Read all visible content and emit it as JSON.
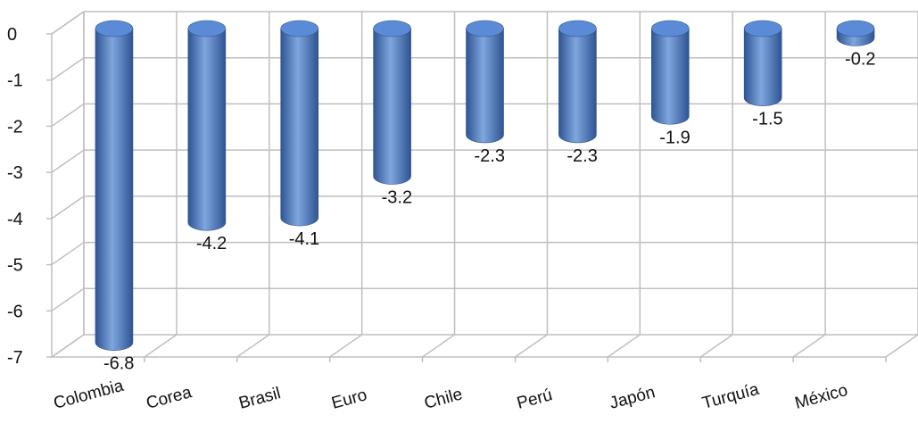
{
  "chart_data": {
    "type": "bar",
    "style": "3d-cylinder",
    "categories": [
      "Colombia",
      "Corea",
      "Brasil",
      "Euro",
      "Chile",
      "Perú",
      "Japón",
      "Turquía",
      "México"
    ],
    "values": [
      -6.8,
      -4.2,
      -4.1,
      -3.2,
      -2.3,
      -2.3,
      -1.9,
      -1.5,
      -0.2
    ],
    "data_labels": [
      "-6.8",
      "-4.2",
      "-4.1",
      "-3.2",
      "-2.3",
      "-2.3",
      "-1.9",
      "-1.5",
      "-0.2"
    ],
    "y_ticks": [
      "0",
      "-1",
      "-2",
      "-3",
      "-4",
      "-5",
      "-6",
      "-7"
    ],
    "ylim": [
      -7,
      0
    ],
    "grid": true,
    "legend": false,
    "colors": {
      "bar": "#4472C4",
      "bar_dark": "#2E5592",
      "bar_light": "#7FA6DE",
      "grid": "#BFBFBF"
    }
  }
}
